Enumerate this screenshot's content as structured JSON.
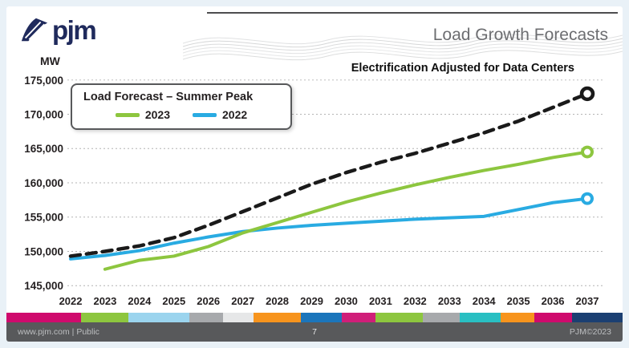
{
  "header": {
    "logo_text": "pjm",
    "title": "Load Growth Forecasts"
  },
  "chart_data": {
    "type": "line",
    "title": "Load Growth Forecasts",
    "unit_label": "MW",
    "x": [
      2022,
      2023,
      2024,
      2025,
      2026,
      2027,
      2028,
      2029,
      2030,
      2031,
      2032,
      2033,
      2034,
      2035,
      2036,
      2037
    ],
    "ylim": [
      145000,
      175000
    ],
    "ytick_step": 5000,
    "grid": "dotted horizontal",
    "legend_position": "top-left",
    "annotation": "Electrification Adjusted for Data Centers",
    "legend": {
      "title": "Load Forecast – Summer Peak",
      "entries": [
        {
          "label": "2023",
          "color": "#8dc63f"
        },
        {
          "label": "2022",
          "color": "#29abe2"
        }
      ]
    },
    "series": [
      {
        "name": "Electrification Adjusted for Data Centers",
        "color": "#1a1a1a",
        "style": "dashed",
        "values": [
          149300,
          150000,
          150800,
          152000,
          153800,
          155800,
          157800,
          159800,
          161500,
          163000,
          164300,
          165800,
          167300,
          169000,
          171000,
          173000
        ]
      },
      {
        "name": "2023",
        "color": "#8dc63f",
        "style": "solid",
        "values": [
          null,
          147400,
          148700,
          149300,
          150700,
          152700,
          154200,
          155700,
          157200,
          158500,
          159700,
          160800,
          161800,
          162700,
          163700,
          164500
        ]
      },
      {
        "name": "2022",
        "color": "#29abe2",
        "style": "solid",
        "values": [
          148900,
          149400,
          150100,
          151200,
          152100,
          152900,
          153400,
          153800,
          154100,
          154400,
          154700,
          154900,
          155100,
          156100,
          157100,
          157700
        ]
      }
    ]
  },
  "footer": {
    "left": "www.pjm.com | Public",
    "page": "7",
    "right": "PJM©2023",
    "strip": [
      {
        "color": "#cf0a6d",
        "w": 88
      },
      {
        "color": "#8dc63f",
        "w": 56
      },
      {
        "color": "#9bd4ee",
        "w": 72
      },
      {
        "color": "#a7a9ac",
        "w": 40
      },
      {
        "color": "#e6e7e8",
        "w": 36
      },
      {
        "color": "#f7941d",
        "w": 56
      },
      {
        "color": "#1b75bb",
        "w": 48
      },
      {
        "color": "#d01e79",
        "w": 40
      },
      {
        "color": "#8dc63f",
        "w": 56
      },
      {
        "color": "#a7a9ac",
        "w": 44
      },
      {
        "color": "#29bfc2",
        "w": 48
      },
      {
        "color": "#f7941d",
        "w": 40
      },
      {
        "color": "#cf0a6d",
        "w": 44
      },
      {
        "color": "#1b3f72",
        "w": 60
      }
    ]
  }
}
